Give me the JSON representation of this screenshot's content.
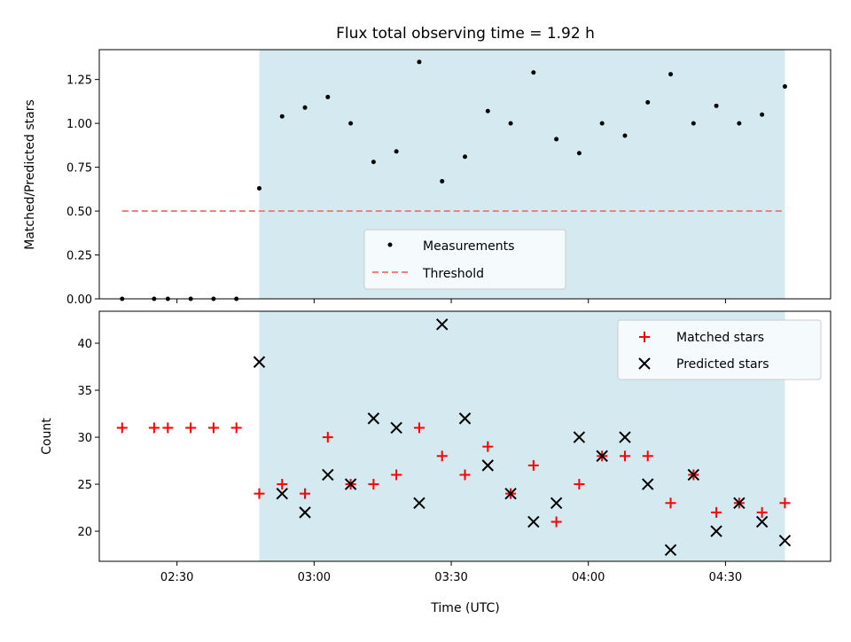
{
  "chart_data": [
    {
      "type": "scatter",
      "title": "Flux total observing time = 1.92 h",
      "xlabel": "",
      "ylabel": "Matched/Predicted stars",
      "ylim": [
        0,
        1.42
      ],
      "yticks": [
        "0.00",
        "0.25",
        "0.50",
        "0.75",
        "1.00",
        "1.25"
      ],
      "ytick_values": [
        0,
        0.25,
        0.5,
        0.75,
        1.0,
        1.25
      ],
      "x_unit": "minutes after 02:00 UTC",
      "shaded_span": [
        "02:48",
        "04:43"
      ],
      "shade_color": "#d4eaf0",
      "threshold": {
        "name": "Threshold",
        "value": 0.5,
        "x_range": [
          "02:18",
          "04:43"
        ],
        "color": "#f08080"
      },
      "series": [
        {
          "name": "Measurements",
          "color": "#000000",
          "x": [
            "02:18",
            "02:25",
            "02:28",
            "02:33",
            "02:38",
            "02:43",
            "02:48",
            "02:53",
            "02:58",
            "03:03",
            "03:08",
            "03:13",
            "03:18",
            "03:23",
            "03:28",
            "03:33",
            "03:38",
            "03:43",
            "03:48",
            "03:53",
            "03:58",
            "04:03",
            "04:08",
            "04:13",
            "04:18",
            "04:23",
            "04:28",
            "04:33",
            "04:38",
            "04:43"
          ],
          "y": [
            0,
            0,
            0,
            0,
            0,
            0,
            0.63,
            1.04,
            1.09,
            1.15,
            1.0,
            0.78,
            0.84,
            1.35,
            0.67,
            0.81,
            1.07,
            1.0,
            1.29,
            0.91,
            0.83,
            1.0,
            0.93,
            1.12,
            1.28,
            1.0,
            1.1,
            1.0,
            1.05,
            1.21
          ]
        }
      ],
      "legend": [
        "Measurements",
        "Threshold"
      ],
      "legend_position": "lower-center"
    },
    {
      "type": "scatter",
      "title": "",
      "xlabel": "Time (UTC)",
      "ylabel": "Count",
      "ylim": [
        16.8,
        43.4
      ],
      "yticks": [
        "20",
        "25",
        "30",
        "35",
        "40"
      ],
      "ytick_values": [
        20,
        25,
        30,
        35,
        40
      ],
      "xlim": [
        "02:13",
        "04:53"
      ],
      "xticks": [
        "02:30",
        "03:00",
        "03:30",
        "04:00",
        "04:30"
      ],
      "shaded_span": [
        "02:48",
        "04:43"
      ],
      "series": [
        {
          "name": "Matched stars",
          "marker": "plus",
          "color": "#ff0000",
          "x": [
            "02:18",
            "02:25",
            "02:28",
            "02:33",
            "02:38",
            "02:43",
            "02:48",
            "02:53",
            "02:58",
            "03:03",
            "03:08",
            "03:13",
            "03:18",
            "03:23",
            "03:28",
            "03:33",
            "03:38",
            "03:43",
            "03:48",
            "03:53",
            "03:58",
            "04:03",
            "04:08",
            "04:13",
            "04:18",
            "04:23",
            "04:28",
            "04:33",
            "04:38",
            "04:43"
          ],
          "y": [
            31,
            31,
            31,
            31,
            31,
            31,
            24,
            25,
            24,
            30,
            25,
            25,
            26,
            31,
            28,
            26,
            29,
            24,
            27,
            21,
            25,
            28,
            28,
            28,
            23,
            26,
            22,
            23,
            22,
            23
          ]
        },
        {
          "name": "Predicted stars",
          "marker": "x",
          "color": "#000000",
          "x": [
            "02:48",
            "02:53",
            "02:58",
            "03:03",
            "03:08",
            "03:13",
            "03:18",
            "03:23",
            "03:28",
            "03:33",
            "03:38",
            "03:43",
            "03:48",
            "03:53",
            "03:58",
            "04:03",
            "04:08",
            "04:13",
            "04:18",
            "04:23",
            "04:28",
            "04:33",
            "04:38",
            "04:43"
          ],
          "y": [
            38,
            24,
            22,
            26,
            25,
            32,
            31,
            23,
            42,
            32,
            27,
            24,
            21,
            23,
            30,
            28,
            30,
            25,
            18,
            26,
            20,
            23,
            21,
            19
          ]
        }
      ],
      "legend": [
        "Matched stars",
        "Predicted stars"
      ],
      "legend_position": "upper-right"
    }
  ]
}
